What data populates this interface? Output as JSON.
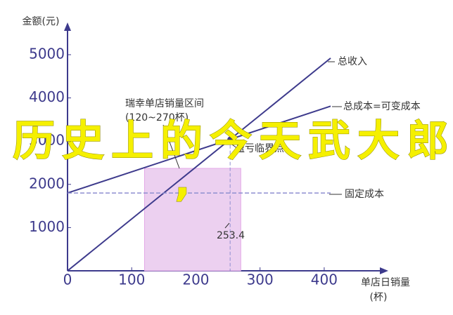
{
  "chart_data": {
    "type": "line",
    "y_label": "金额(元)",
    "x_label": [
      "单店日销量",
      "(杯)"
    ],
    "x": [
      0,
      410
    ],
    "series": [
      {
        "name": "总收入",
        "color": "#3d3a8c",
        "values": [
          0,
          4920
        ]
      },
      {
        "name": "总成本=可变成本",
        "color": "#3d3a8c",
        "values": [
          1800,
          3809
        ]
      },
      {
        "name": "固定成本",
        "color": "#8f8fd0",
        "values": [
          1800,
          1800
        ],
        "dashed": true
      }
    ],
    "range": {
      "label": [
        "瑞幸单店销量区间",
        "(120~270杯)"
      ],
      "from": 120,
      "to": 270,
      "color": "#ecd0f0"
    },
    "break_even": {
      "label": "盈亏临界点",
      "x": 253.4,
      "y": 3040,
      "x_label": "253.4"
    },
    "overlay": [
      "历史上的今天武大郎",
      ","
    ],
    "xlim": [
      0,
      490
    ],
    "ylim": [
      0,
      5600
    ],
    "xticks": [
      0,
      100,
      200,
      300,
      400
    ],
    "yticks": [
      1000,
      2000,
      3000,
      4000,
      5000
    ]
  }
}
